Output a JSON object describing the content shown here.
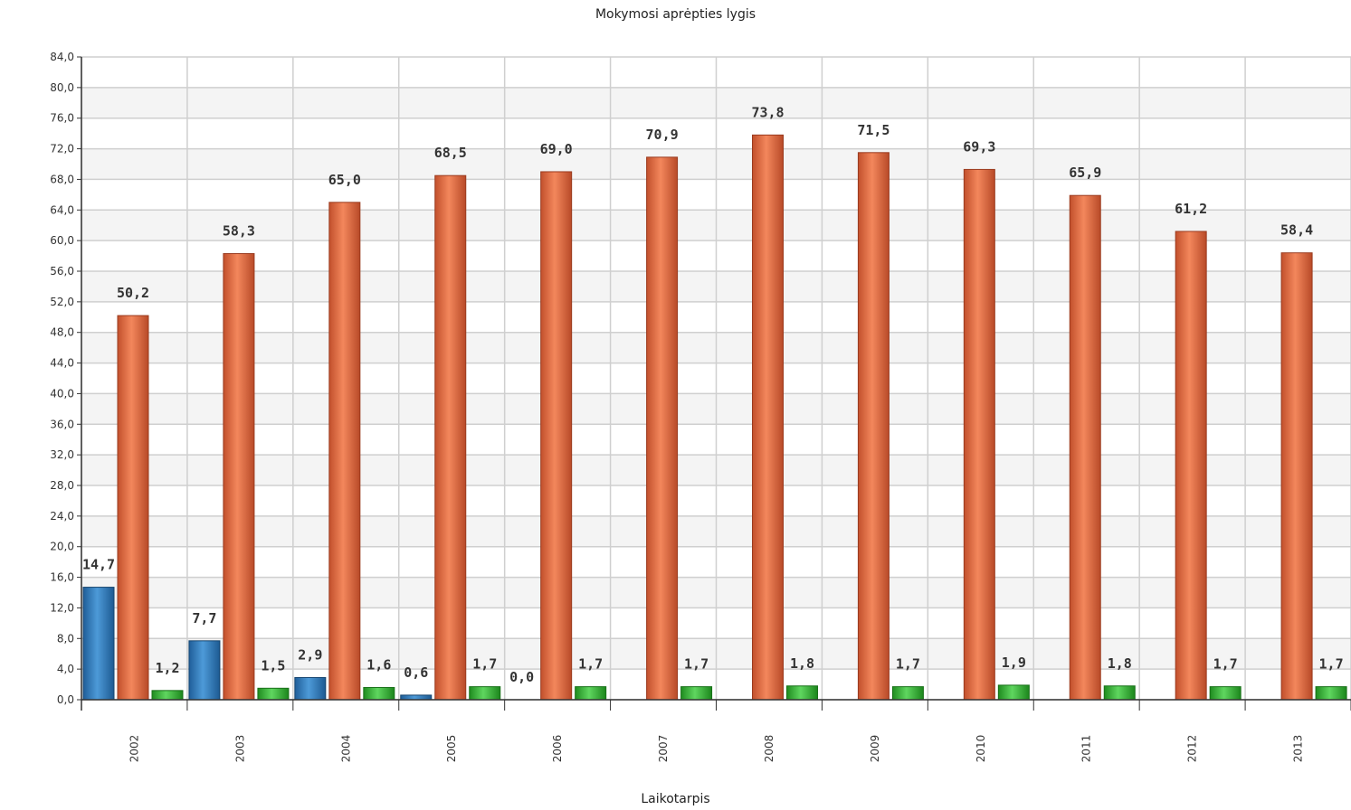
{
  "chart_data": {
    "type": "bar",
    "title": "Mokymosi aprėpties lygis",
    "xlabel": "Laikotarpis",
    "ylabel": "",
    "ylim": [
      0,
      84
    ],
    "ytick_step": 4,
    "grid": true,
    "legend": "none",
    "categories": [
      "2002",
      "2003",
      "2004",
      "2005",
      "2006",
      "2007",
      "2008",
      "2009",
      "2010",
      "2011",
      "2012",
      "2013"
    ],
    "series": [
      {
        "color": "#3a87c8",
        "values": [
          14.7,
          7.7,
          2.9,
          0.6,
          0.0,
          null,
          null,
          null,
          null,
          null,
          null,
          null
        ],
        "labels": [
          "14,7",
          "7,7",
          "2,9",
          "0,6",
          "0,0",
          "",
          "",
          "",
          "",
          "",
          "",
          ""
        ]
      },
      {
        "color": "#e8734a",
        "values": [
          50.2,
          58.3,
          65.0,
          68.5,
          69.0,
          70.9,
          73.8,
          71.5,
          69.3,
          65.9,
          61.2,
          58.4
        ],
        "labels": [
          "50,2",
          "58,3",
          "65,0",
          "68,5",
          "69,0",
          "70,9",
          "73,8",
          "71,5",
          "69,3",
          "65,9",
          "61,2",
          "58,4"
        ]
      },
      {
        "color": "#3dbb3d",
        "values": [
          1.2,
          1.5,
          1.6,
          1.7,
          1.7,
          1.7,
          1.8,
          1.7,
          1.9,
          1.8,
          1.7,
          1.7
        ],
        "labels": [
          "1,2",
          "1,5",
          "1,6",
          "1,7",
          "1,7",
          "1,7",
          "1,8",
          "1,7",
          "1,9",
          "1,8",
          "1,7",
          "1,7"
        ]
      }
    ],
    "ytick_labels": [
      "0,0",
      "4,0",
      "8,0",
      "12,0",
      "16,0",
      "20,0",
      "24,0",
      "28,0",
      "32,0",
      "36,0",
      "40,0",
      "44,0",
      "48,0",
      "52,0",
      "56,0",
      "60,0",
      "64,0",
      "68,0",
      "72,0",
      "76,0",
      "80,0",
      "84,0"
    ]
  }
}
